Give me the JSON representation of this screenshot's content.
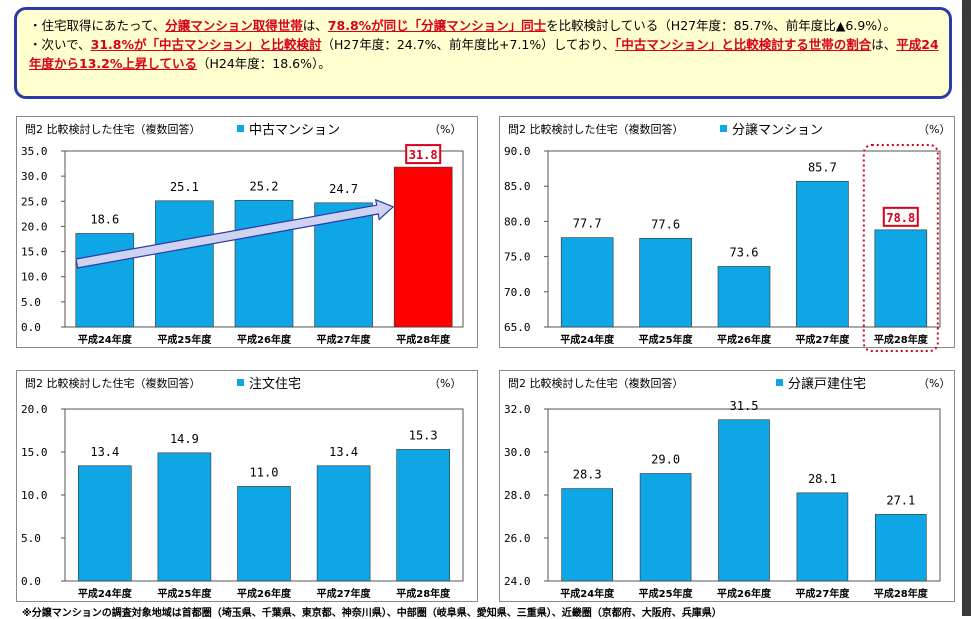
{
  "summary": {
    "line1": {
      "p1": "・住宅取得にあたって、",
      "h1": "分譲マンション取得世帯",
      "p2": "は、",
      "h2": "78.8%が同じ「分譲マンション」同士",
      "p3": "を比較検討している（H27年度：85.7%、前年度比▲6.9%）。"
    },
    "line2": {
      "p1": "・次いで、",
      "h1": "31.8%が「中古マンション」と比較検討",
      "p2": "（H27年度：24.7%、前年度比+7.1%）しており、",
      "h2": "「中古マンション」と比較検討する世帯の割合",
      "p3": "は、",
      "h3": "平成24年度から13.2%上昇している",
      "p4": "（H24年度：18.6%）。"
    }
  },
  "note": "※分譲マンションの調査対象地域は首都圏（埼玉県、千葉県、東京都、神奈川県）、中部圏（岐阜県、愛知県、三重県）、近畿圏（京都府、大阪府、兵庫県）",
  "colors": {
    "bar": "#0fa6e6",
    "highlight_bar": "#ff0000",
    "highlight_text": "#d8001a",
    "arrow_fill": "#cfd3f2",
    "arrow_stroke": "#2b3aa8"
  },
  "chart_data": [
    {
      "type": "bar",
      "title": "問2 比較検討した住宅（複数回答）",
      "legend": "中古マンション",
      "unit": "（%）",
      "categories": [
        "平成24年度",
        "平成25年度",
        "平成26年度",
        "平成27年度",
        "平成28年度"
      ],
      "values": [
        18.6,
        25.1,
        25.2,
        24.7,
        31.8
      ],
      "value_labels": [
        "18.6",
        "25.1",
        "25.2",
        "24.7",
        "31.8"
      ],
      "ylim": [
        0,
        35
      ],
      "yticks": [
        "0.0",
        "5.0",
        "10.0",
        "15.0",
        "20.0",
        "25.0",
        "30.0",
        "35.0"
      ],
      "highlight_index": 4,
      "highlight_style": "red-bar",
      "trend_arrow": true,
      "grid": false
    },
    {
      "type": "bar",
      "title": "問2 比較検討した住宅（複数回答）",
      "legend": "分譲マンション",
      "unit": "（%）",
      "categories": [
        "平成24年度",
        "平成25年度",
        "平成26年度",
        "平成27年度",
        "平成28年度"
      ],
      "values": [
        77.7,
        77.6,
        73.6,
        85.7,
        78.8
      ],
      "value_labels": [
        "77.7",
        "77.6",
        "73.6",
        "85.7",
        "78.8"
      ],
      "ylim": [
        65,
        90
      ],
      "yticks": [
        "65.0",
        "70.0",
        "75.0",
        "80.0",
        "85.0",
        "90.0"
      ],
      "highlight_index": 4,
      "highlight_style": "dotted-box",
      "grid": false
    },
    {
      "type": "bar",
      "title": "問2 比較検討した住宅（複数回答）",
      "legend": "注文住宅",
      "unit": "（%）",
      "categories": [
        "平成24年度",
        "平成25年度",
        "平成26年度",
        "平成27年度",
        "平成28年度"
      ],
      "values": [
        13.4,
        14.9,
        11.0,
        13.4,
        15.3
      ],
      "value_labels": [
        "13.4",
        "14.9",
        "11.0",
        "13.4",
        "15.3"
      ],
      "ylim": [
        0,
        20
      ],
      "yticks": [
        "0.0",
        "5.0",
        "10.0",
        "15.0",
        "20.0"
      ],
      "grid": false
    },
    {
      "type": "bar",
      "title": "問2 比較検討した住宅（複数回答）",
      "legend": "分譲戸建住宅",
      "unit": "（%）",
      "categories": [
        "平成24年度",
        "平成25年度",
        "平成26年度",
        "平成27年度",
        "平成28年度"
      ],
      "values": [
        28.3,
        29.0,
        31.5,
        28.1,
        27.1
      ],
      "value_labels": [
        "28.3",
        "29.0",
        "31.5",
        "28.1",
        "27.1"
      ],
      "ylim": [
        24,
        32
      ],
      "yticks": [
        "24.0",
        "26.0",
        "28.0",
        "30.0",
        "32.0"
      ],
      "grid": false
    }
  ]
}
